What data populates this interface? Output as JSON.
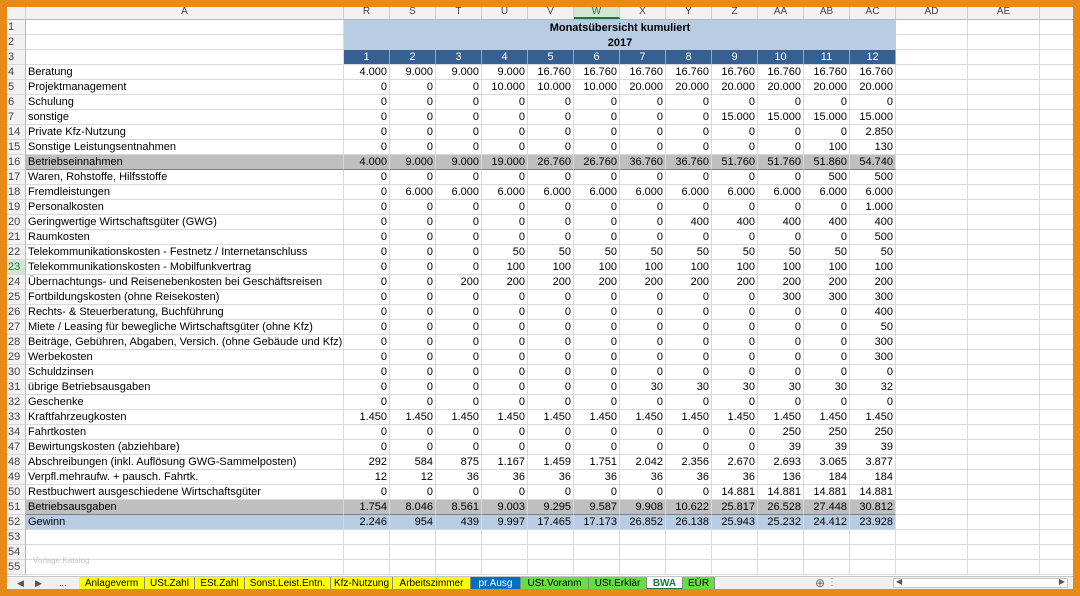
{
  "columns": {
    "row_header": "",
    "A": "A",
    "data": [
      "R",
      "S",
      "T",
      "U",
      "V",
      "W",
      "X",
      "Y",
      "Z",
      "AA",
      "AB",
      "AC"
    ],
    "extra": [
      "AD",
      "AE"
    ],
    "selected": "W"
  },
  "header": {
    "title": "Monatsübersicht kumuliert",
    "year": "2017",
    "row_numbers": [
      "1",
      "2",
      "3"
    ],
    "months": [
      "1",
      "2",
      "3",
      "4",
      "5",
      "6",
      "7",
      "8",
      "9",
      "10",
      "11",
      "12"
    ]
  },
  "rows": [
    {
      "n": "4",
      "label": "Beratung",
      "values": [
        "4.000",
        "9.000",
        "9.000",
        "9.000",
        "16.760",
        "16.760",
        "16.760",
        "16.760",
        "16.760",
        "16.760",
        "16.760",
        "16.760"
      ]
    },
    {
      "n": "5",
      "label": "Projektmanagement",
      "values": [
        "0",
        "0",
        "0",
        "10.000",
        "10.000",
        "10.000",
        "20.000",
        "20.000",
        "20.000",
        "20.000",
        "20.000",
        "20.000"
      ]
    },
    {
      "n": "6",
      "label": "Schulung",
      "values": [
        "0",
        "0",
        "0",
        "0",
        "0",
        "0",
        "0",
        "0",
        "0",
        "0",
        "0",
        "0"
      ]
    },
    {
      "n": "7",
      "label": "sonstige",
      "values": [
        "0",
        "0",
        "0",
        "0",
        "0",
        "0",
        "0",
        "0",
        "15.000",
        "15.000",
        "15.000",
        "15.000"
      ]
    },
    {
      "n": "14",
      "label": "Private Kfz-Nutzung",
      "values": [
        "0",
        "0",
        "0",
        "0",
        "0",
        "0",
        "0",
        "0",
        "0",
        "0",
        "0",
        "2.850"
      ]
    },
    {
      "n": "15",
      "label": "Sonstige Leistungsentnahmen",
      "values": [
        "0",
        "0",
        "0",
        "0",
        "0",
        "0",
        "0",
        "0",
        "0",
        "0",
        "100",
        "130"
      ]
    },
    {
      "n": "16",
      "label": "Betriebseinnahmen",
      "style": "gray",
      "values": [
        "4.000",
        "9.000",
        "9.000",
        "19.000",
        "26.760",
        "26.760",
        "36.760",
        "36.760",
        "51.760",
        "51.760",
        "51.860",
        "54.740"
      ]
    },
    {
      "n": "17",
      "label": "Waren, Rohstoffe, Hilfsstoffe",
      "values": [
        "0",
        "0",
        "0",
        "0",
        "0",
        "0",
        "0",
        "0",
        "0",
        "0",
        "500",
        "500"
      ]
    },
    {
      "n": "18",
      "label": "Fremdleistungen",
      "values": [
        "0",
        "6.000",
        "6.000",
        "6.000",
        "6.000",
        "6.000",
        "6.000",
        "6.000",
        "6.000",
        "6.000",
        "6.000",
        "6.000"
      ]
    },
    {
      "n": "19",
      "label": "Personalkosten",
      "values": [
        "0",
        "0",
        "0",
        "0",
        "0",
        "0",
        "0",
        "0",
        "0",
        "0",
        "0",
        "1.000"
      ]
    },
    {
      "n": "20",
      "label": "Geringwertige Wirtschaftsgüter (GWG)",
      "values": [
        "0",
        "0",
        "0",
        "0",
        "0",
        "0",
        "0",
        "400",
        "400",
        "400",
        "400",
        "400"
      ]
    },
    {
      "n": "21",
      "label": "Raumkosten",
      "values": [
        "0",
        "0",
        "0",
        "0",
        "0",
        "0",
        "0",
        "0",
        "0",
        "0",
        "0",
        "500"
      ]
    },
    {
      "n": "22",
      "label": "Telekommunikationskosten - Festnetz / Internetanschluss",
      "values": [
        "0",
        "0",
        "0",
        "50",
        "50",
        "50",
        "50",
        "50",
        "50",
        "50",
        "50",
        "50"
      ]
    },
    {
      "n": "23",
      "label": "Telekommunikationskosten - Mobilfunkvertrag",
      "values": [
        "0",
        "0",
        "0",
        "100",
        "100",
        "100",
        "100",
        "100",
        "100",
        "100",
        "100",
        "100"
      ]
    },
    {
      "n": "24",
      "label": "Übernachtungs- und Reisenebenkosten bei Geschäftsreisen",
      "values": [
        "0",
        "0",
        "200",
        "200",
        "200",
        "200",
        "200",
        "200",
        "200",
        "200",
        "200",
        "200"
      ]
    },
    {
      "n": "25",
      "label": "Fortbildungskosten (ohne Reisekosten)",
      "values": [
        "0",
        "0",
        "0",
        "0",
        "0",
        "0",
        "0",
        "0",
        "0",
        "300",
        "300",
        "300"
      ]
    },
    {
      "n": "26",
      "label": "Rechts- & Steuerberatung, Buchführung",
      "values": [
        "0",
        "0",
        "0",
        "0",
        "0",
        "0",
        "0",
        "0",
        "0",
        "0",
        "0",
        "400"
      ]
    },
    {
      "n": "27",
      "label": "Miete / Leasing für bewegliche Wirtschaftsgüter (ohne Kfz)",
      "values": [
        "0",
        "0",
        "0",
        "0",
        "0",
        "0",
        "0",
        "0",
        "0",
        "0",
        "0",
        "50"
      ]
    },
    {
      "n": "28",
      "label": "Beiträge, Gebühren, Abgaben, Versich. (ohne Gebäude und Kfz)",
      "values": [
        "0",
        "0",
        "0",
        "0",
        "0",
        "0",
        "0",
        "0",
        "0",
        "0",
        "0",
        "300"
      ]
    },
    {
      "n": "29",
      "label": "Werbekosten",
      "values": [
        "0",
        "0",
        "0",
        "0",
        "0",
        "0",
        "0",
        "0",
        "0",
        "0",
        "0",
        "300"
      ]
    },
    {
      "n": "30",
      "label": "Schuldzinsen",
      "values": [
        "0",
        "0",
        "0",
        "0",
        "0",
        "0",
        "0",
        "0",
        "0",
        "0",
        "0",
        "0"
      ]
    },
    {
      "n": "31",
      "label": "übrige Betriebsausgaben",
      "values": [
        "0",
        "0",
        "0",
        "0",
        "0",
        "0",
        "30",
        "30",
        "30",
        "30",
        "30",
        "32"
      ]
    },
    {
      "n": "32",
      "label": "Geschenke",
      "values": [
        "0",
        "0",
        "0",
        "0",
        "0",
        "0",
        "0",
        "0",
        "0",
        "0",
        "0",
        "0"
      ]
    },
    {
      "n": "33",
      "label": "Kraftfahrzeugkosten",
      "values": [
        "1.450",
        "1.450",
        "1.450",
        "1.450",
        "1.450",
        "1.450",
        "1.450",
        "1.450",
        "1.450",
        "1.450",
        "1.450",
        "1.450"
      ]
    },
    {
      "n": "34",
      "label": "Fahrtkosten",
      "values": [
        "0",
        "0",
        "0",
        "0",
        "0",
        "0",
        "0",
        "0",
        "0",
        "250",
        "250",
        "250"
      ]
    },
    {
      "n": "47",
      "label": "Bewirtungskosten (abziehbare)",
      "values": [
        "0",
        "0",
        "0",
        "0",
        "0",
        "0",
        "0",
        "0",
        "0",
        "39",
        "39",
        "39"
      ]
    },
    {
      "n": "48",
      "label": "Abschreibungen (inkl. Auflösung GWG-Sammelposten)",
      "values": [
        "292",
        "584",
        "875",
        "1.167",
        "1.459",
        "1.751",
        "2.042",
        "2.356",
        "2.670",
        "2.693",
        "3.065",
        "3.877"
      ]
    },
    {
      "n": "49",
      "label": "Verpfl.mehraufw. + pausch. Fahrtk.",
      "values": [
        "12",
        "12",
        "36",
        "36",
        "36",
        "36",
        "36",
        "36",
        "36",
        "136",
        "184",
        "184"
      ]
    },
    {
      "n": "50",
      "label": "Restbuchwert ausgeschiedene Wirtschaftsgüter",
      "values": [
        "0",
        "0",
        "0",
        "0",
        "0",
        "0",
        "0",
        "0",
        "14.881",
        "14.881",
        "14.881",
        "14.881"
      ]
    },
    {
      "n": "51",
      "label": "Betriebsausgaben",
      "style": "gray",
      "values": [
        "1.754",
        "8.046",
        "8.561",
        "9.003",
        "9.295",
        "9.587",
        "9.908",
        "10.622",
        "25.817",
        "26.528",
        "27.448",
        "30.812"
      ]
    },
    {
      "n": "52",
      "label": "Gewinn",
      "style": "blue",
      "values": [
        "2.246",
        "954",
        "439",
        "9.997",
        "17.465",
        "17.173",
        "26.852",
        "26.138",
        "25.943",
        "25.232",
        "24.412",
        "23.928"
      ]
    },
    {
      "n": "53",
      "label": "",
      "style": "empty",
      "values": []
    },
    {
      "n": "54",
      "label": "",
      "style": "empty",
      "values": []
    },
    {
      "n": "55",
      "label": "",
      "style": "empty",
      "values": []
    }
  ],
  "watermark": "Vorlage Katalog",
  "tabs": {
    "nav_prev": "◀",
    "nav_next": "▶",
    "ellipsis": "...",
    "add": "⊕",
    "more": "⋮",
    "items": [
      {
        "label": "Anlageverm",
        "color": "#ffff00"
      },
      {
        "label": "USt.Zahl",
        "color": "#ffff00"
      },
      {
        "label": "ESt.Zahl",
        "color": "#ffff00"
      },
      {
        "label": "Sonst.Leist.Entn.",
        "color": "#ffff00"
      },
      {
        "label": "Kfz-Nutzung",
        "color": "#ffff00"
      },
      {
        "label": "Arbeitszimmer",
        "color": "#ffff00"
      },
      {
        "label": "pr.Ausg",
        "color": "#0070c0"
      },
      {
        "label": "USt.Voranm",
        "color": "#66dd44"
      },
      {
        "label": "USt.Erklär",
        "color": "#66dd44"
      },
      {
        "label": "BWA",
        "color": "#ffffff",
        "active": true
      },
      {
        "label": "EÜR",
        "color": "#66dd44"
      }
    ]
  },
  "colors": {
    "frame": "#e88a18",
    "header_blue": "#b8cce4",
    "header_dark": "#366092",
    "total_gray": "#bfbfbf",
    "excel_green": "#217346"
  }
}
